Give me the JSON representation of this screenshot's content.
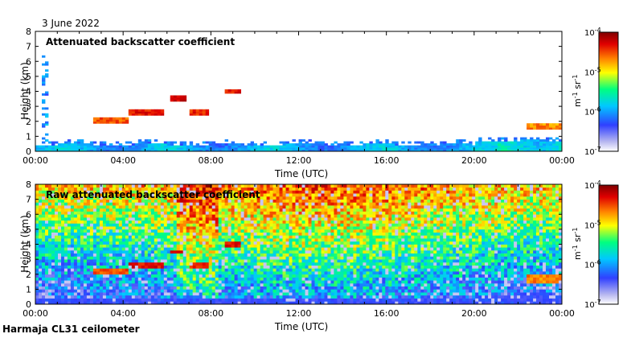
{
  "date_label": "3 June 2022",
  "footer_label": "Harmaja CL31 ceilometer",
  "colors": {
    "scale": [
      "#ffffff",
      "#b8b8f0",
      "#3040ff",
      "#00c8ff",
      "#00ff80",
      "#ffff00",
      "#ff8000",
      "#e00000",
      "#800000"
    ]
  },
  "colorbar": {
    "unit_prefix": "m",
    "unit_exp1": "-1",
    "unit_mid": " sr",
    "unit_exp2": "-1",
    "ticks": [
      {
        "base": "10",
        "exp": "-4",
        "value": 0.0001
      },
      {
        "base": "10",
        "exp": "-5",
        "value": 1e-05
      },
      {
        "base": "10",
        "exp": "-6",
        "value": 1e-06
      },
      {
        "base": "10",
        "exp": "-7",
        "value": 1e-07
      }
    ]
  },
  "chart_data": [
    {
      "type": "heatmap",
      "title": "Attenuated backscatter coefficient",
      "xlabel": "Time (UTC)",
      "ylabel": "Height (km)",
      "xlim": [
        0,
        24
      ],
      "ylim": [
        0,
        8
      ],
      "x_ticks": [
        {
          "v": 0,
          "label": "00:00"
        },
        {
          "v": 4,
          "label": "04:00"
        },
        {
          "v": 8,
          "label": "08:00"
        },
        {
          "v": 12,
          "label": "12:00"
        },
        {
          "v": 16,
          "label": "16:00"
        },
        {
          "v": 20,
          "label": "20:00"
        },
        {
          "v": 24,
          "label": "00:00"
        }
      ],
      "y_ticks": [
        0,
        1,
        2,
        3,
        4,
        5,
        6,
        7,
        8
      ],
      "color_scale": "log",
      "clim": [
        1e-07,
        0.0001
      ],
      "cloud_layers": [
        {
          "t0": 2.6,
          "t1": 4.3,
          "h": 2.1,
          "level": 0.85
        },
        {
          "t0": 4.3,
          "t1": 5.8,
          "h": 2.6,
          "level": 0.92
        },
        {
          "t0": 6.2,
          "t1": 6.9,
          "h": 3.5,
          "level": 0.95
        },
        {
          "t0": 7.0,
          "t1": 7.9,
          "h": 2.6,
          "level": 0.9
        },
        {
          "t0": 8.6,
          "t1": 9.4,
          "h": 4.0,
          "level": 0.92
        },
        {
          "t0": 22.4,
          "t1": 24.0,
          "h": 1.7,
          "level": 0.8
        }
      ]
    },
    {
      "type": "heatmap",
      "title": "Raw attenuated backscatter coefficient",
      "xlabel": "Time (UTC)",
      "ylabel": "Height (km)",
      "xlim": [
        0,
        24
      ],
      "ylim": [
        0,
        8
      ],
      "x_ticks": [
        {
          "v": 0,
          "label": "00:00"
        },
        {
          "v": 4,
          "label": "04:00"
        },
        {
          "v": 8,
          "label": "08:00"
        },
        {
          "v": 12,
          "label": "12:00"
        },
        {
          "v": 16,
          "label": "16:00"
        },
        {
          "v": 20,
          "label": "20:00"
        },
        {
          "v": 24,
          "label": "00:00"
        }
      ],
      "y_ticks": [
        0,
        1,
        2,
        3,
        4,
        5,
        6,
        7,
        8
      ],
      "color_scale": "log",
      "clim": [
        1e-07,
        0.0001
      ]
    }
  ]
}
